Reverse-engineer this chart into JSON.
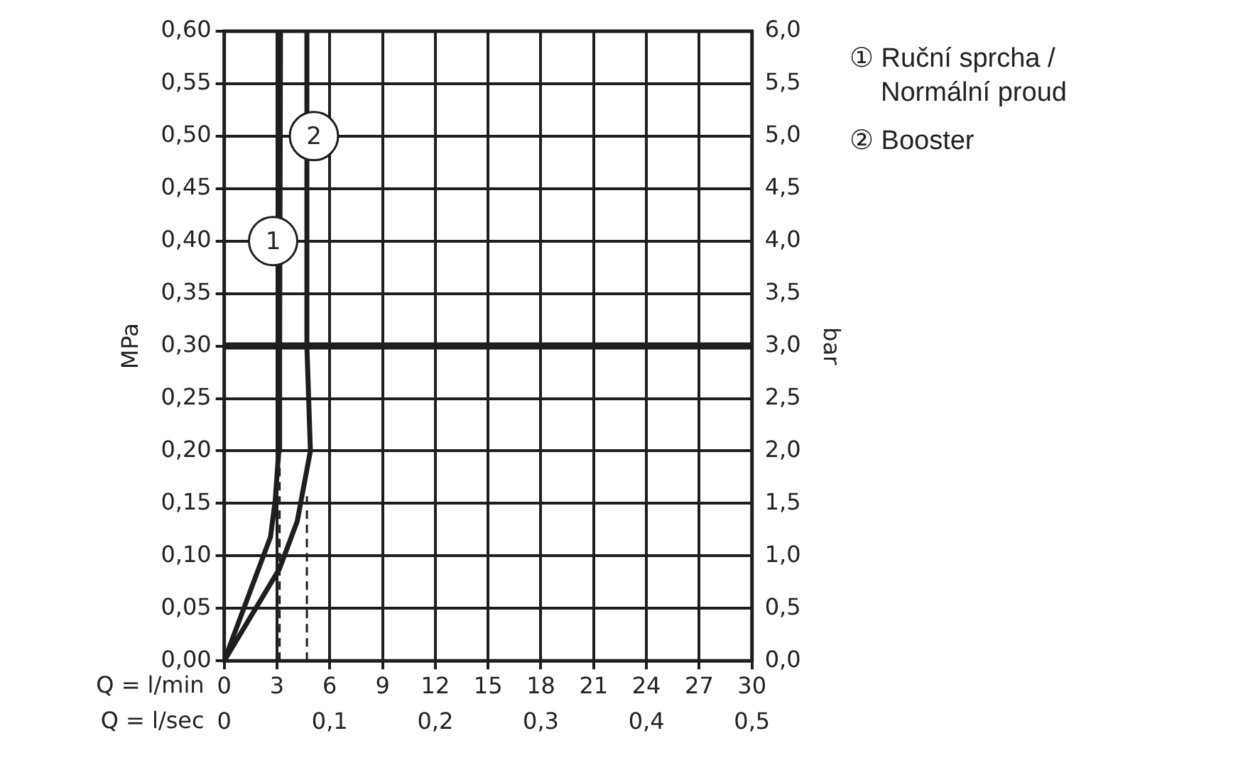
{
  "chart_data": {
    "type": "line",
    "xlabel": "Q = l/min",
    "x2label": "Q = l/sec",
    "ylabel": "MPa",
    "y2label": "bar",
    "xlim": [
      0,
      30
    ],
    "xticks": [
      0,
      3,
      6,
      9,
      12,
      15,
      18,
      21,
      24,
      27,
      30
    ],
    "x2lim": [
      0,
      0.5
    ],
    "x2ticks": [
      {
        "value": 0,
        "label": "0"
      },
      {
        "value": 0.1,
        "label": "0,1"
      },
      {
        "value": 0.2,
        "label": "0,2"
      },
      {
        "value": 0.3,
        "label": "0,3"
      },
      {
        "value": 0.4,
        "label": "0,4"
      },
      {
        "value": 0.5,
        "label": "0,5"
      }
    ],
    "ylim": [
      0,
      0.6
    ],
    "yticks": [
      {
        "value": 0,
        "label": "0,00"
      },
      {
        "value": 0.05,
        "label": "0,05"
      },
      {
        "value": 0.1,
        "label": "0,10"
      },
      {
        "value": 0.15,
        "label": "0,15"
      },
      {
        "value": 0.2,
        "label": "0,20"
      },
      {
        "value": 0.25,
        "label": "0,25"
      },
      {
        "value": 0.3,
        "label": "0,30"
      },
      {
        "value": 0.35,
        "label": "0,35"
      },
      {
        "value": 0.4,
        "label": "0,40"
      },
      {
        "value": 0.45,
        "label": "0,45"
      },
      {
        "value": 0.5,
        "label": "0,50"
      },
      {
        "value": 0.55,
        "label": "0,55"
      },
      {
        "value": 0.6,
        "label": "0,60"
      }
    ],
    "y2lim": [
      0,
      6
    ],
    "y2ticks": [
      {
        "value": 0,
        "label": "0,0"
      },
      {
        "value": 0.5,
        "label": "0,5"
      },
      {
        "value": 1,
        "label": "1,0"
      },
      {
        "value": 1.5,
        "label": "1,5"
      },
      {
        "value": 2,
        "label": "2,0"
      },
      {
        "value": 2.5,
        "label": "2,5"
      },
      {
        "value": 3,
        "label": "3,0"
      },
      {
        "value": 3.5,
        "label": "3,5"
      },
      {
        "value": 4,
        "label": "4,0"
      },
      {
        "value": 4.5,
        "label": "4,5"
      },
      {
        "value": 5,
        "label": "5,0"
      },
      {
        "value": 5.5,
        "label": "5,5"
      },
      {
        "value": 6,
        "label": "6,0"
      }
    ],
    "grid": true,
    "legend": "right",
    "marker": "none",
    "line_style": "solid",
    "series": [
      {
        "name": "① Ruční sprcha / Normální proud",
        "color": "#1e1e1e",
        "x": [
          0,
          2.63,
          2.9,
          3.1,
          3.15,
          3.2
        ],
        "values": [
          0,
          0.118,
          0.153,
          0.2,
          0.3,
          0.6
        ]
      },
      {
        "name": "② Booster",
        "color": "#1e1e1e",
        "x": [
          0,
          3.15,
          4.15,
          4.9,
          4.8,
          4.7,
          4.7
        ],
        "values": [
          0,
          0.088,
          0.133,
          0.2,
          0.25,
          0.3,
          0.6
        ]
      },
      {
        "color": "#1e1e1e",
        "line_style": "dashed",
        "x": [
          3.15,
          3.15
        ],
        "values": [
          0,
          0.22
        ]
      },
      {
        "color": "#1e1e1e",
        "line_style": "dashed",
        "x": [
          4.7,
          4.7
        ],
        "values": [
          0,
          0.158
        ]
      }
    ],
    "ref_lines": [
      {
        "axis": "y",
        "value": 0.3,
        "color": "#1e1e1e"
      }
    ],
    "annotations": [
      {
        "text": "1",
        "x": 2.78,
        "y": 0.4
      },
      {
        "text": "2",
        "x": 5.1,
        "y": 0.5
      }
    ]
  }
}
